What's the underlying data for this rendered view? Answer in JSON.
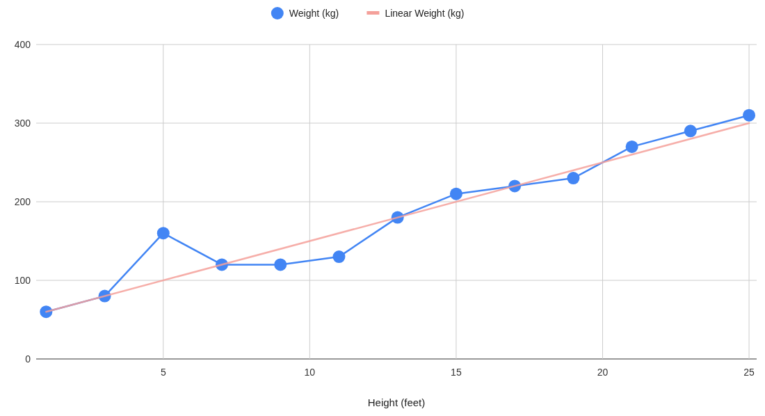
{
  "chart_data": {
    "type": "line",
    "xlabel": "Height (feet)",
    "xlim": [
      0.66,
      25.26
    ],
    "xticks": [
      5,
      10,
      15,
      20,
      25
    ],
    "ylim": [
      0,
      400
    ],
    "yticks": [
      0,
      100,
      200,
      300,
      400
    ],
    "grid": true,
    "legend": "top",
    "series": [
      {
        "name": "Weight (kg)",
        "color": "#4285f4",
        "marker": "circle",
        "x": [
          1,
          3,
          5,
          7,
          9,
          11,
          13,
          15,
          17,
          19,
          21,
          23,
          25
        ],
        "values": [
          60,
          80,
          160,
          120,
          120,
          130,
          180,
          210,
          220,
          230,
          270,
          290,
          310
        ]
      },
      {
        "name": "Linear Weight (kg)",
        "color": "#f4a09a",
        "marker": "none",
        "x": [
          1,
          25
        ],
        "values": [
          60,
          300
        ]
      }
    ]
  }
}
